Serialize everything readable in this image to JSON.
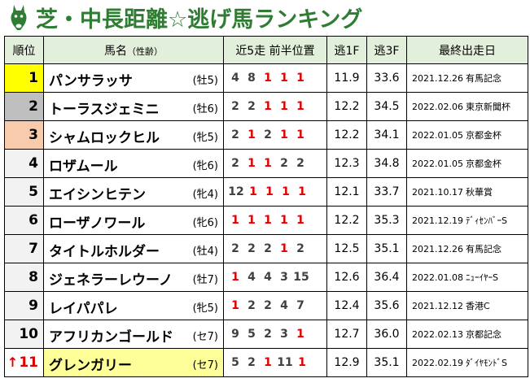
{
  "title": "芝・中長距離☆逃げ馬ランキング",
  "colors": {
    "title": "#2e7d32",
    "header_bg": "#e2efda",
    "gold": "#ffff00",
    "silver": "#bfbfbf",
    "bronze": "#f8cbad",
    "new_rank": "#e00000",
    "highlight": "#ffff99"
  },
  "headers": {
    "rank": "順位",
    "name": "馬名",
    "name_sub": "（性齢）",
    "positions": "近5走 前半位置",
    "nige1f": "逃1F",
    "nige3f": "逃3F",
    "last_race": "最終出走日"
  },
  "rows": [
    {
      "rank": "1",
      "name": "パンサラッサ",
      "sexage": "(牡5)",
      "positions": [
        "4",
        "8",
        "1",
        "1",
        "1"
      ],
      "f1": "11.9",
      "f3": "33.6",
      "date": "2021.12.26",
      "race": "有馬記念"
    },
    {
      "rank": "2",
      "name": "トーラスジェミニ",
      "sexage": "(牡6)",
      "positions": [
        "2",
        "2",
        "1",
        "1",
        "1"
      ],
      "f1": "12.2",
      "f3": "34.5",
      "date": "2022.02.06",
      "race": "東京新聞杯"
    },
    {
      "rank": "3",
      "name": "シャムロックヒル",
      "sexage": "(牝5)",
      "positions": [
        "2",
        "1",
        "2",
        "1",
        "1"
      ],
      "f1": "12.2",
      "f3": "34.1",
      "date": "2022.01.05",
      "race": "京都金杯"
    },
    {
      "rank": "4",
      "name": "ロザムール",
      "sexage": "(牝6)",
      "positions": [
        "2",
        "1",
        "1",
        "2",
        "2"
      ],
      "f1": "12.3",
      "f3": "34.8",
      "date": "2022.01.05",
      "race": "京都金杯"
    },
    {
      "rank": "5",
      "name": "エイシンヒテン",
      "sexage": "(牝4)",
      "positions": [
        "12",
        "1",
        "1",
        "1",
        "1"
      ],
      "f1": "12.1",
      "f3": "33.7",
      "date": "2021.10.17",
      "race": "秋華賞"
    },
    {
      "rank": "6",
      "name": "ローザノワール",
      "sexage": "(牝6)",
      "positions": [
        "1",
        "1",
        "1",
        "1",
        "1"
      ],
      "f1": "12.2",
      "f3": "35.3",
      "date": "2021.12.19",
      "race": "ﾃﾞｨｾﾝﾊﾞｰS"
    },
    {
      "rank": "7",
      "name": "タイトルホルダー",
      "sexage": "(牡4)",
      "positions": [
        "2",
        "2",
        "2",
        "1",
        "2"
      ],
      "f1": "12.5",
      "f3": "35.1",
      "date": "2021.12.26",
      "race": "有馬記念"
    },
    {
      "rank": "8",
      "name": "ジェネラーレウーノ",
      "sexage": "(牡7)",
      "positions": [
        "1",
        "4",
        "4",
        "3",
        "15"
      ],
      "f1": "12.6",
      "f3": "36.4",
      "date": "2022.01.08",
      "race": "ﾆｭｰｲﾔｰS"
    },
    {
      "rank": "9",
      "name": "レイパパレ",
      "sexage": "(牝5)",
      "positions": [
        "1",
        "2",
        "2",
        "4",
        "7"
      ],
      "f1": "12.4",
      "f3": "35.6",
      "date": "2021.12.12",
      "race": "香港C"
    },
    {
      "rank": "10",
      "name": "アフリカンゴールド",
      "sexage": "(セ7)",
      "positions": [
        "9",
        "5",
        "2",
        "3",
        "1"
      ],
      "f1": "12.7",
      "f3": "36.0",
      "date": "2022.02.13",
      "race": "京都記念"
    },
    {
      "rank": "11",
      "arrow": "↑",
      "name": "グレンガリー",
      "sexage": "(セ7)",
      "positions": [
        "5",
        "2",
        "1",
        "11",
        "1"
      ],
      "f1": "12.9",
      "f3": "35.1",
      "date": "2022.02.19",
      "race": "ﾀﾞｲﾔﾓﾝﾄﾞS"
    }
  ]
}
